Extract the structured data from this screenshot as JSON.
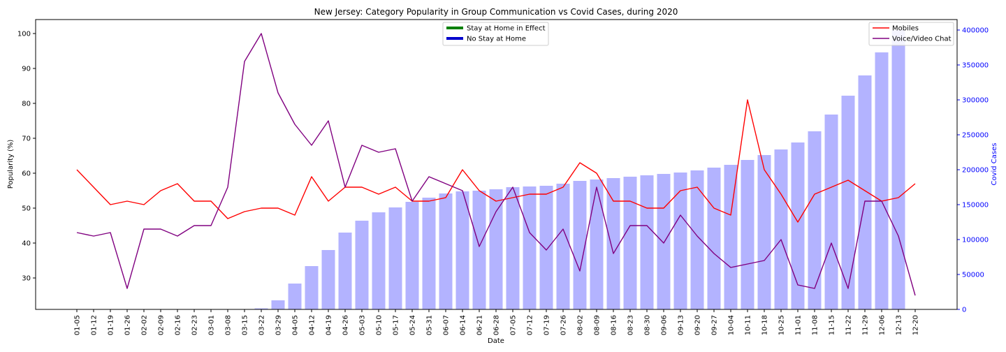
{
  "chart_data": {
    "type": "bar+line",
    "title": "New Jersey: Category Popularity in Group Communication vs Covid Cases, during 2020",
    "xlabel": "Date",
    "ylabel": "Popularity (%)",
    "y2label": "Covid Cases",
    "ylim": [
      21,
      104
    ],
    "y2lim": [
      0,
      415000
    ],
    "yticks": [
      30,
      40,
      50,
      60,
      70,
      80,
      90,
      100
    ],
    "y2ticks": [
      0,
      50000,
      100000,
      150000,
      200000,
      250000,
      300000,
      350000,
      400000
    ],
    "categories": [
      "01-05",
      "01-12",
      "01-19",
      "01-26",
      "02-02",
      "02-09",
      "02-16",
      "02-23",
      "03-01",
      "03-08",
      "03-15",
      "03-22",
      "03-29",
      "04-05",
      "04-12",
      "04-19",
      "04-26",
      "05-03",
      "05-10",
      "05-17",
      "05-24",
      "05-31",
      "06-07",
      "06-14",
      "06-21",
      "06-28",
      "07-05",
      "07-12",
      "07-19",
      "07-26",
      "08-02",
      "08-09",
      "08-16",
      "08-23",
      "08-30",
      "09-06",
      "09-13",
      "09-20",
      "09-27",
      "10-04",
      "10-11",
      "10-18",
      "10-25",
      "11-01",
      "11-08",
      "11-15",
      "11-22",
      "11-29",
      "12-06",
      "12-13",
      "12-20"
    ],
    "bars": {
      "name": "Covid Cases",
      "color": "#b3b3ff",
      "values": [
        0,
        0,
        0,
        0,
        0,
        0,
        0,
        0,
        0,
        0,
        0,
        1500,
        13000,
        37000,
        62000,
        85000,
        110000,
        127000,
        139000,
        146000,
        154000,
        160000,
        166000,
        169000,
        170000,
        172000,
        175000,
        176000,
        177000,
        180000,
        184000,
        186000,
        188000,
        190000,
        192000,
        194000,
        196000,
        199000,
        203000,
        207000,
        214000,
        221000,
        229000,
        239000,
        255000,
        279000,
        306000,
        335000,
        368000,
        400000,
        0
      ]
    },
    "series": [
      {
        "name": "Mobiles",
        "color": "#ff0000",
        "values": [
          61,
          56,
          51,
          52,
          51,
          55,
          57,
          52,
          52,
          47,
          49,
          50,
          50,
          48,
          59,
          52,
          56,
          56,
          54,
          56,
          52,
          52,
          53,
          61,
          55,
          52,
          53,
          54,
          54,
          56,
          63,
          60,
          52,
          52,
          50,
          50,
          55,
          56,
          50,
          48,
          81,
          61,
          54,
          46,
          54,
          56,
          58,
          55,
          52,
          53,
          57
        ]
      },
      {
        "name": "Voice/Video Chat",
        "color": "#800080",
        "values": [
          43,
          42,
          43,
          27,
          44,
          44,
          42,
          45,
          45,
          56,
          92,
          100,
          83,
          74,
          68,
          75,
          56,
          68,
          66,
          67,
          52,
          59,
          57,
          55,
          39,
          49,
          56,
          43,
          38,
          44,
          32,
          56,
          37,
          45,
          45,
          40,
          48,
          42,
          37,
          33,
          34,
          35,
          41,
          28,
          27,
          40,
          27,
          52,
          52,
          42,
          25
        ]
      }
    ],
    "legend_left": [
      {
        "label": "Stay at Home in Effect",
        "color": "#008000"
      },
      {
        "label": "No Stay at Home",
        "color": "#0000cd"
      }
    ],
    "legend_right_position": "top-right",
    "legend_left_position": "top-center"
  }
}
